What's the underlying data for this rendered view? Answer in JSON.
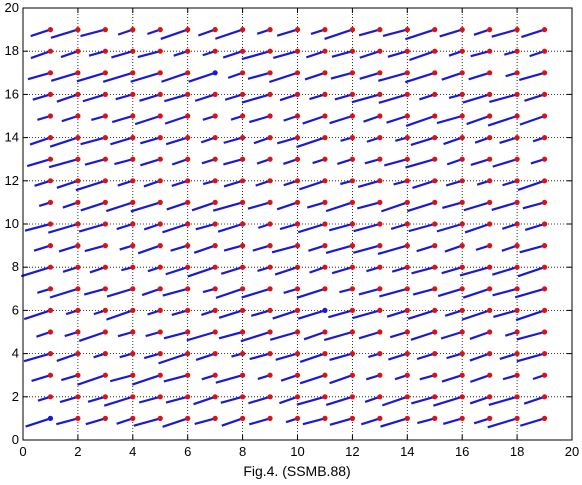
{
  "chart_data": {
    "type": "scatter",
    "title": "",
    "xlabel": "",
    "ylabel": "",
    "caption": "Fig.4. (SSMB.88)",
    "xlim": [
      0,
      20
    ],
    "ylim": [
      0,
      20
    ],
    "xticks": [
      0,
      2,
      4,
      6,
      8,
      10,
      12,
      14,
      16,
      18,
      20
    ],
    "yticks": [
      0,
      2,
      4,
      6,
      8,
      10,
      12,
      14,
      16,
      18,
      20
    ],
    "grid": true,
    "grid_style": "dotted",
    "legend": "none",
    "grid_points": {
      "x_range": [
        1,
        19
      ],
      "y_range": [
        1,
        19
      ],
      "step": 1
    },
    "marker_color": "#dd1111",
    "highlight_color": "#1a1ad6",
    "segment_color": "#1a1ad6",
    "highlighted_points": [
      [
        1,
        1
      ],
      [
        7,
        17
      ],
      [
        11,
        6
      ]
    ],
    "segments": {
      "description_units": "data units; each segment runs from the grid point (x, y) toward the upper-left with offsets dx, dy",
      "typical_offset": {
        "dx": -0.9,
        "dy": -0.35
      }
    }
  }
}
